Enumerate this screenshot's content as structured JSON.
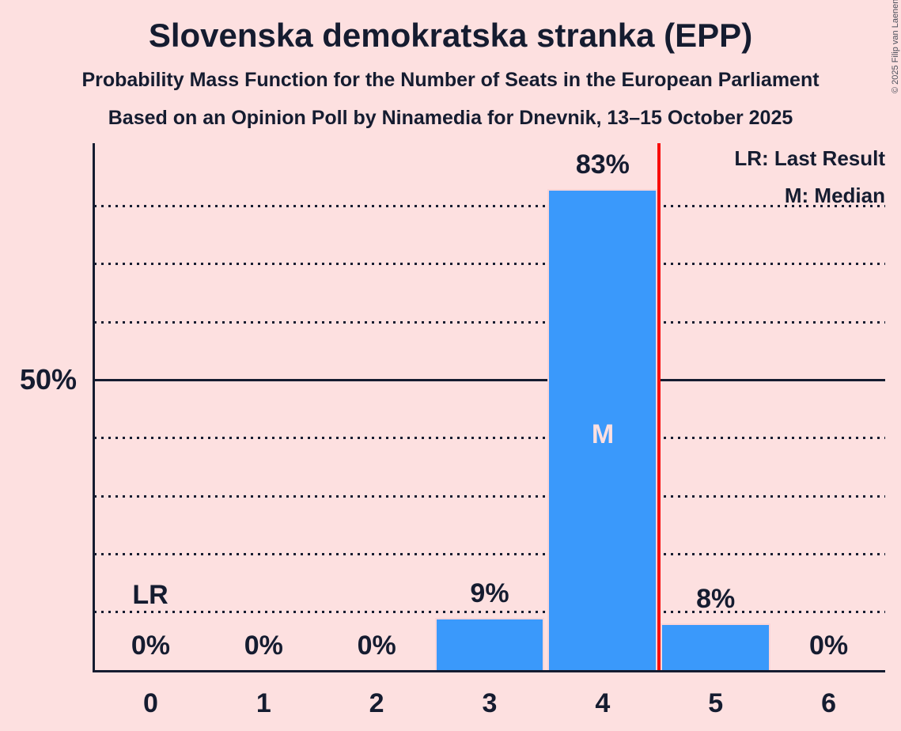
{
  "page": {
    "copyright": "© 2025 Filip van Laenen"
  },
  "header": {
    "title": "Slovenska demokratska stranka (EPP)",
    "subtitle": "Probability Mass Function for the Number of Seats in the European Parliament",
    "poll_line": "Based on an Opinion Poll by Ninamedia for Dnevnik, 13–15 October 2025"
  },
  "legend": {
    "last_result": "LR: Last Result",
    "median": "M: Median"
  },
  "chart_data": {
    "type": "bar",
    "title": "Slovenska demokratska stranka (EPP)",
    "categories": [
      "0",
      "1",
      "2",
      "3",
      "4",
      "5",
      "6"
    ],
    "values": [
      0,
      0,
      0,
      9,
      83,
      8,
      0
    ],
    "value_labels": [
      "0%",
      "0%",
      "0%",
      "9%",
      "83%",
      "8%",
      "0%"
    ],
    "ylim": [
      0,
      91
    ],
    "y_tick": {
      "value": 50,
      "label": "50%"
    },
    "solid_gridline_pct": 50,
    "dotted_gridlines_pct": [
      10,
      20,
      30,
      40,
      60,
      70,
      80
    ],
    "grid": "horizontal dotted, 50% solid",
    "legend_position": "top-right",
    "median": {
      "category": "4",
      "label": "M"
    },
    "last_result": {
      "position_between": [
        "4",
        "5"
      ],
      "label": "LR"
    },
    "colors": {
      "background": "#FDE0E0",
      "bar": "#3A99FB",
      "bar_stroke": "#FBD5D7",
      "last_result_line": "#F90D0B",
      "text": "#151C30",
      "median_label_text": "#FDE0E0",
      "copyright_text": "#4D505C"
    }
  }
}
